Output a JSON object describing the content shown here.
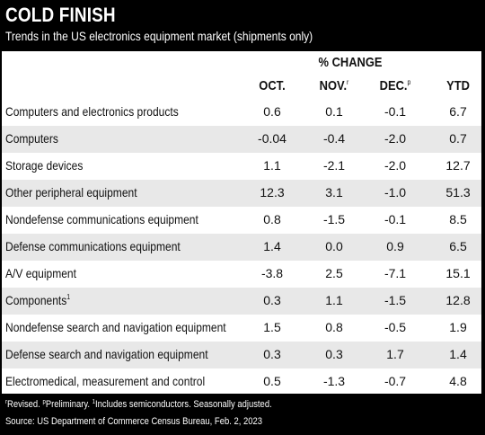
{
  "header": {
    "title": "COLD FINISH",
    "subtitle": "Trends in the US electronics equipment market (shipments only)"
  },
  "table": {
    "group_header": "% CHANGE",
    "columns": [
      {
        "label": "OCT.",
        "mark": ""
      },
      {
        "label": "NOV.",
        "mark": "r"
      },
      {
        "label": "DEC.",
        "mark": "p"
      },
      {
        "label": "YTD",
        "mark": ""
      }
    ],
    "rows": [
      {
        "label": "Computers and electronics products",
        "mark": "",
        "values": [
          "0.6",
          "0.1",
          "-0.1",
          "6.7"
        ]
      },
      {
        "label": "Computers",
        "mark": "",
        "values": [
          "-0.04",
          "-0.4",
          "-2.0",
          "0.7"
        ]
      },
      {
        "label": "Storage devices",
        "mark": "",
        "values": [
          "1.1",
          "-2.1",
          "-2.0",
          "12.7"
        ]
      },
      {
        "label": "Other peripheral equipment",
        "mark": "",
        "values": [
          "12.3",
          "3.1",
          "-1.0",
          "51.3"
        ]
      },
      {
        "label": "Nondefense communications equipment",
        "mark": "",
        "values": [
          "0.8",
          "-1.5",
          "-0.1",
          "8.5"
        ]
      },
      {
        "label": "Defense communications equipment",
        "mark": "",
        "values": [
          "1.4",
          "0.0",
          "0.9",
          "6.5"
        ]
      },
      {
        "label": "A/V equipment",
        "mark": "",
        "values": [
          "-3.8",
          "2.5",
          "-7.1",
          "15.1"
        ]
      },
      {
        "label": "Components",
        "mark": "1",
        "values": [
          "0.3",
          "1.1",
          "-1.5",
          "12.8"
        ]
      },
      {
        "label": "Nondefense search and navigation equipment",
        "mark": "",
        "values": [
          "1.5",
          "0.8",
          "-0.5",
          "1.9"
        ]
      },
      {
        "label": "Defense search and navigation equipment",
        "mark": "",
        "values": [
          "0.3",
          "0.3",
          "1.7",
          "1.4"
        ]
      },
      {
        "label": "Electromedical, measurement and control",
        "mark": "",
        "values": [
          "0.5",
          "-1.3",
          "-0.7",
          "4.8"
        ]
      }
    ]
  },
  "footnotes": {
    "notes": [
      {
        "mark": "r",
        "text": "Revised. "
      },
      {
        "mark": "p",
        "text": "Preliminary. "
      },
      {
        "mark": "1",
        "text": "Includes semiconductors. Seasonally adjusted."
      }
    ],
    "source": "Source: US Department of Commerce Census Bureau, Feb. 2, 2023"
  },
  "chart_data": {
    "type": "table",
    "title": "COLD FINISH",
    "subtitle": "Trends in the US electronics equipment market (shipments only)",
    "group_header": "% CHANGE",
    "columns": [
      "OCT.",
      "NOV.",
      "DEC.",
      "YTD"
    ],
    "categories": [
      "Computers and electronics products",
      "Computers",
      "Storage devices",
      "Other peripheral equipment",
      "Nondefense communications equipment",
      "Defense communications equipment",
      "A/V equipment",
      "Components",
      "Nondefense search and navigation equipment",
      "Defense search and navigation equipment",
      "Electromedical, measurement and control"
    ],
    "series": [
      {
        "name": "OCT.",
        "values": [
          0.6,
          -0.04,
          1.1,
          12.3,
          0.8,
          1.4,
          -3.8,
          0.3,
          1.5,
          0.3,
          0.5
        ]
      },
      {
        "name": "NOV.",
        "values": [
          0.1,
          -0.4,
          -2.1,
          3.1,
          -1.5,
          0.0,
          2.5,
          1.1,
          0.8,
          0.3,
          -1.3
        ]
      },
      {
        "name": "DEC.",
        "values": [
          -0.1,
          -2.0,
          -2.0,
          -1.0,
          -0.1,
          0.9,
          -7.1,
          -1.5,
          -0.5,
          1.7,
          -0.7
        ]
      },
      {
        "name": "YTD",
        "values": [
          6.7,
          0.7,
          12.7,
          51.3,
          8.5,
          6.5,
          15.1,
          12.8,
          1.9,
          1.4,
          4.8
        ]
      }
    ]
  }
}
